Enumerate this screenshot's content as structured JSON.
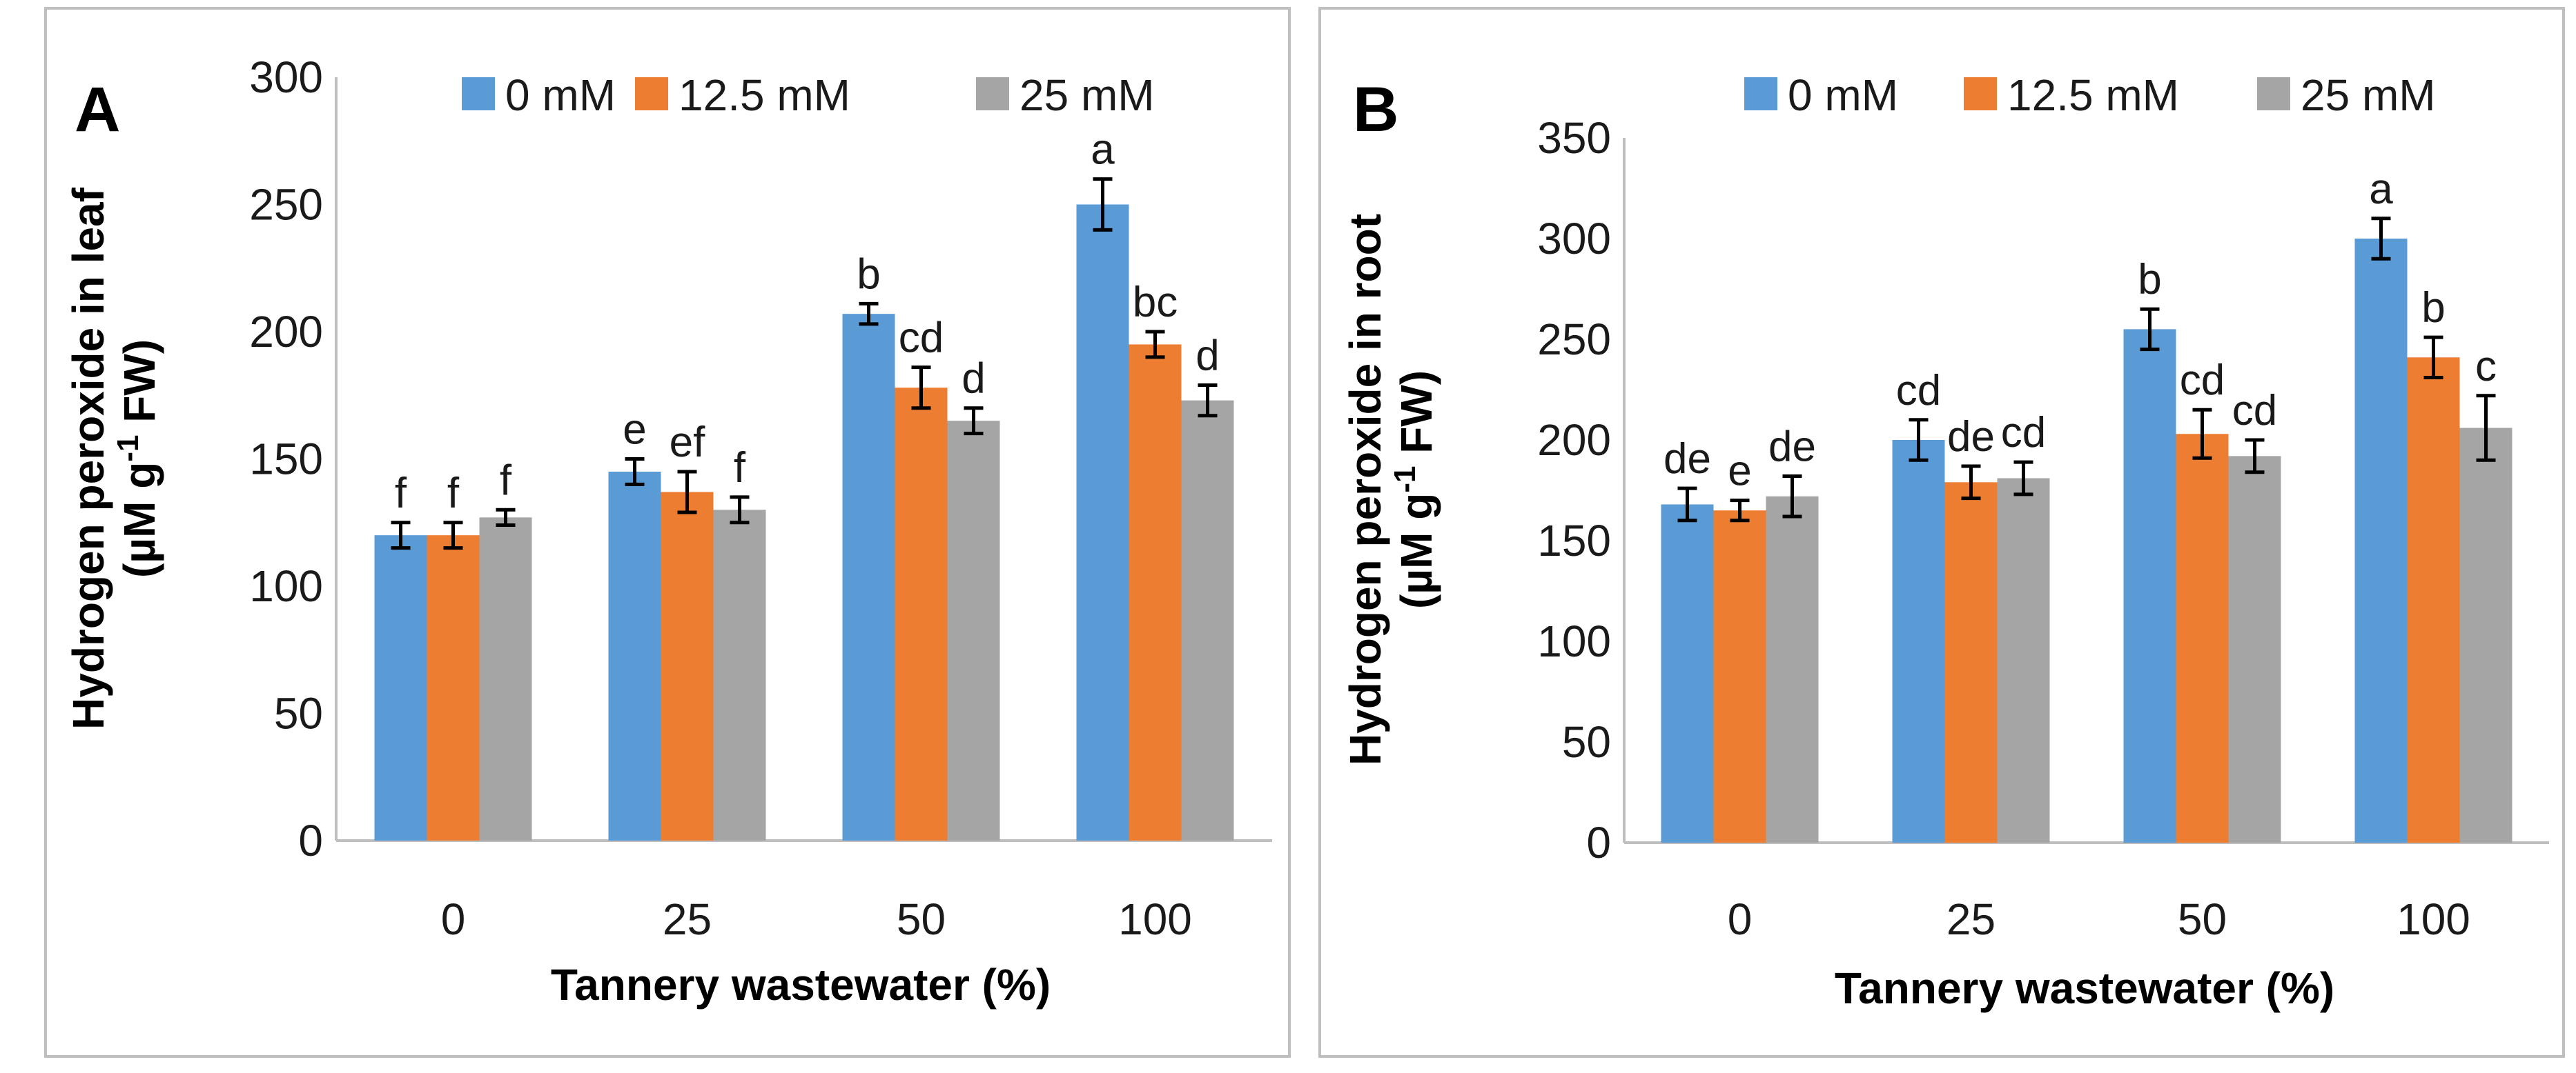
{
  "chart_data": [
    {
      "type": "bar",
      "panel_label": "A",
      "categories": [
        "0",
        "25",
        "50",
        "100"
      ],
      "series": [
        {
          "name": "0 mM",
          "color": "#5b9bd5",
          "values": [
            120,
            145,
            207,
            250
          ],
          "errors": [
            5,
            5,
            4,
            10
          ],
          "labels": [
            "f",
            "e",
            "b",
            "a"
          ]
        },
        {
          "name": "12.5 mM",
          "color": "#ed7d31",
          "values": [
            120,
            137,
            178,
            195
          ],
          "errors": [
            5,
            8,
            8,
            5
          ],
          "labels": [
            "f",
            "ef",
            "cd",
            "bc"
          ]
        },
        {
          "name": "25 mM",
          "color": "#a5a5a5",
          "values": [
            127,
            130,
            165,
            173
          ],
          "errors": [
            3,
            5,
            5,
            6
          ],
          "labels": [
            "f",
            "f",
            "d",
            "d"
          ]
        }
      ],
      "xlabel": "Tannery wastewater (%)",
      "ylabel_line1": "Hydrogen peroxide in leaf",
      "ylabel_line2_prefix": "(µM g",
      "ylabel_line2_sup": "-1",
      "ylabel_line2_suffix": " FW)",
      "ylim": [
        0,
        300
      ],
      "yticks": [
        "0",
        "50",
        "100",
        "150",
        "200",
        "250",
        "300"
      ],
      "legend_position": "top"
    },
    {
      "type": "bar",
      "panel_label": "B",
      "categories": [
        "0",
        "25",
        "50",
        "100"
      ],
      "series": [
        {
          "name": "0 mM",
          "color": "#5b9bd5",
          "values": [
            168,
            200,
            255,
            300
          ],
          "errors": [
            8,
            10,
            10,
            10
          ],
          "labels": [
            "de",
            "cd",
            "b",
            "a"
          ]
        },
        {
          "name": "12.5 mM",
          "color": "#ed7d31",
          "values": [
            165,
            179,
            203,
            241
          ],
          "errors": [
            5,
            8,
            12,
            10
          ],
          "labels": [
            "e",
            "de",
            "cd",
            "b"
          ]
        },
        {
          "name": "25 mM",
          "color": "#a5a5a5",
          "values": [
            172,
            181,
            192,
            206
          ],
          "errors": [
            10,
            8,
            8,
            16
          ],
          "labels": [
            "de",
            "cd",
            "cd",
            "c"
          ]
        }
      ],
      "xlabel": "Tannery wastewater (%)",
      "ylabel_line1": "Hydrogen peroxide in root",
      "ylabel_line2_prefix": "(µM g",
      "ylabel_line2_sup": "-1",
      "ylabel_line2_suffix": " FW)",
      "ylim": [
        0,
        350
      ],
      "yticks": [
        "0",
        "50",
        "100",
        "150",
        "200",
        "250",
        "300",
        "350"
      ],
      "legend_position": "top"
    }
  ]
}
